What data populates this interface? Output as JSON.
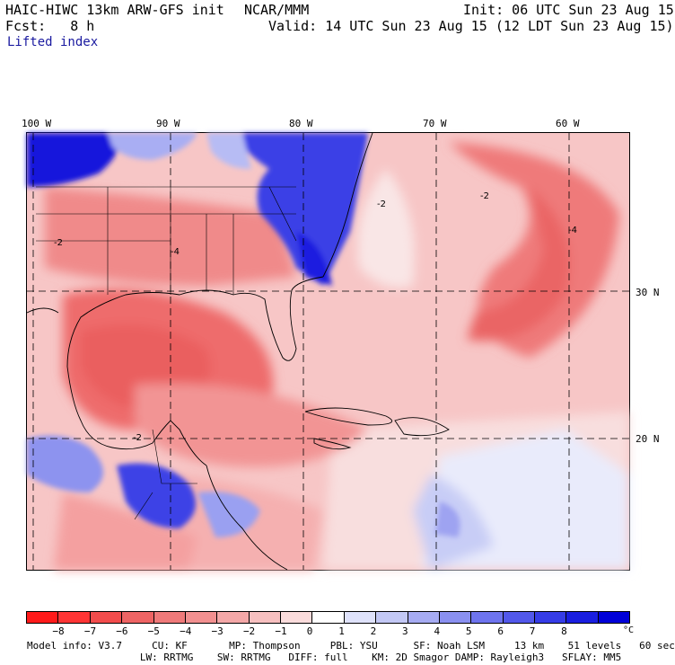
{
  "header": {
    "model": "HAIC-HIWC 13km ARW-GFS init",
    "org": "NCAR/MMM",
    "init": "Init: 06 UTC Sun 23 Aug 15",
    "fcst": "Fcst:   8 h",
    "valid": "Valid: 14 UTC Sun 23 Aug 15 (12 LDT Sun 23 Aug 15)",
    "field": "Lifted index"
  },
  "map": {
    "lon_labels": [
      "100 W",
      "90 W",
      "80 W",
      "70 W",
      "60 W"
    ],
    "lat_labels": [
      "30 N",
      "20 N"
    ],
    "contour_labels": [
      "-2",
      "-2",
      "-2",
      "-2",
      "-4",
      "-4"
    ],
    "colors": {
      "ocean_base": "#f7c6c6",
      "strong_neg": "#ee6a6a",
      "mid_neg": "#f29090",
      "near_zero": "#f8e2e2",
      "pos_light": "#c3c8f5",
      "pos_mid": "#6e74ee",
      "pos_strong": "#1212e0"
    }
  },
  "colorbar": {
    "ticks": [
      "−8",
      "−7",
      "−6",
      "−5",
      "−4",
      "−3",
      "−2",
      "−1",
      "0",
      "1",
      "2",
      "3",
      "4",
      "5",
      "6",
      "7",
      "8"
    ],
    "unit": "°C",
    "colors": [
      "#ff1a1a",
      "#ff3535",
      "#f24c4c",
      "#ee6464",
      "#ef7a7a",
      "#f29090",
      "#f4a8a8",
      "#f7c0c0",
      "#fbdcdc",
      "#ffffff",
      "#dfe2fb",
      "#c3c8f5",
      "#a6abf2",
      "#8a90f0",
      "#6e74ee",
      "#5258ea",
      "#363ce6",
      "#1a1ee0",
      "#0000d8"
    ]
  },
  "footer": {
    "line1": "Model info: V3.7     CU: KF       MP: Thompson     PBL: YSU      SF: Noah LSM     13 km    51 levels   60 sec",
    "line2": "                   LW: RRTMG    SW: RRTMG   DIFF: full    KM: 2D Smagor DAMP: Rayleigh3   SFLAY: MM5"
  }
}
